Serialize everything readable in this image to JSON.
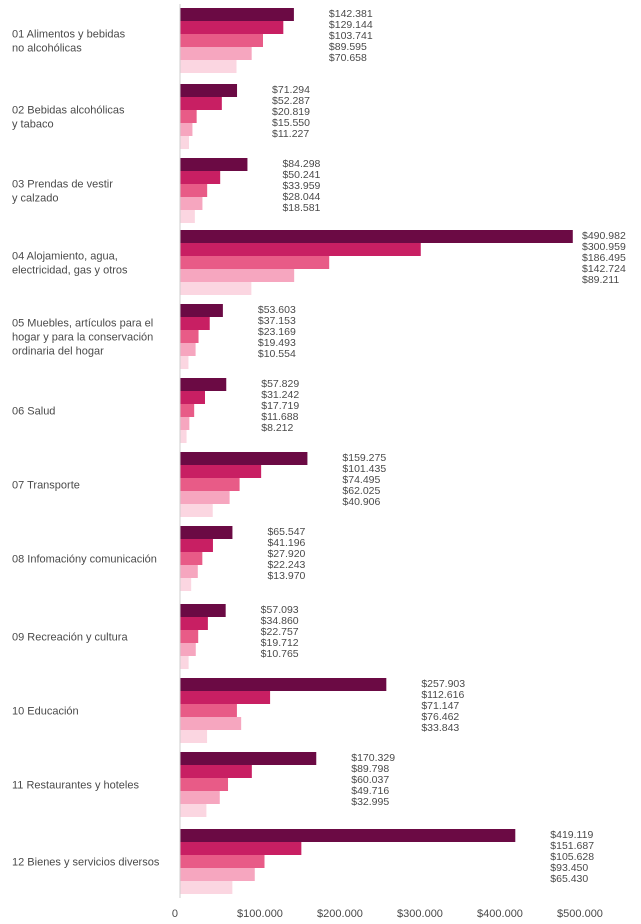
{
  "chart_data": {
    "type": "bar",
    "orientation": "horizontal",
    "title": "",
    "xlabel": "",
    "ylabel": "",
    "xlim": [
      0,
      500000
    ],
    "x_ticks": [
      0,
      100000,
      200000,
      300000,
      400000,
      500000
    ],
    "x_tick_labels": [
      "0",
      "$100.000",
      "$200.000",
      "$300.000",
      "$400.000",
      "$500.000"
    ],
    "grid": false,
    "legend": "none",
    "series_colors": [
      "#6b0a44",
      "#c81f63",
      "#e85b87",
      "#f6a6bf",
      "#fbd6e1"
    ],
    "categories": [
      {
        "lines": [
          "01 Alimentos y bebidas",
          "no alcohólicas"
        ],
        "values": [
          142381,
          129144,
          103741,
          89595,
          70658
        ],
        "labels": [
          "$142.381",
          "$129.144",
          "$103.741",
          "$89.595",
          "$70.658"
        ]
      },
      {
        "lines": [
          "02 Bebidas alcohólicas",
          "y tabaco"
        ],
        "values": [
          71294,
          52287,
          20819,
          15550,
          11227
        ],
        "labels": [
          "$71.294",
          "$52.287",
          "$20.819",
          "$15.550",
          "$11.227"
        ]
      },
      {
        "lines": [
          "03 Prendas de vestir",
          "y calzado"
        ],
        "values": [
          84298,
          50241,
          33959,
          28044,
          18581
        ],
        "labels": [
          "$84.298",
          "$50.241",
          "$33.959",
          "$28.044",
          "$18.581"
        ]
      },
      {
        "lines": [
          "04 Alojamiento, agua,",
          "electricidad, gas y otros"
        ],
        "values": [
          490982,
          300959,
          186495,
          142724,
          89211
        ],
        "labels": [
          "$490.982",
          "$300.959",
          "$186.495",
          "$142.724",
          "$89.211"
        ]
      },
      {
        "lines": [
          "05  Muebles, artículos para el",
          "hogar y para la conservación",
          "ordinaria del hogar"
        ],
        "values": [
          53603,
          37153,
          23169,
          19493,
          10554
        ],
        "labels": [
          "$53.603",
          "$37.153",
          "$23.169",
          "$19.493",
          "$10.554"
        ]
      },
      {
        "lines": [
          "06 Salud"
        ],
        "values": [
          57829,
          31242,
          17719,
          11688,
          8212
        ],
        "labels": [
          "$57.829",
          "$31.242",
          "$17.719",
          "$11.688",
          "$8.212"
        ]
      },
      {
        "lines": [
          "07 Transporte"
        ],
        "values": [
          159275,
          101435,
          74495,
          62025,
          40906
        ],
        "labels": [
          "$159.275",
          "$101.435",
          "$74.495",
          "$62.025",
          "$40.906"
        ]
      },
      {
        "lines": [
          "08 Infomacióny comunicación"
        ],
        "values": [
          65547,
          41196,
          27920,
          22243,
          13970
        ],
        "labels": [
          "$65.547",
          "$41.196",
          "$27.920",
          "$22.243",
          "$13.970"
        ]
      },
      {
        "lines": [
          "09 Recreación y cultura"
        ],
        "values": [
          57093,
          34860,
          22757,
          19712,
          10765
        ],
        "labels": [
          "$57.093",
          "$34.860",
          "$22.757",
          "$19.712",
          "$10.765"
        ]
      },
      {
        "lines": [
          "10 Educación"
        ],
        "values": [
          257903,
          112616,
          71147,
          76462,
          33843
        ],
        "labels": [
          "$257.903",
          "$112.616",
          "$71.147",
          "$76.462",
          "$33.843"
        ]
      },
      {
        "lines": [
          "11 Restaurantes y hoteles"
        ],
        "values": [
          170329,
          89798,
          60037,
          49716,
          32995
        ],
        "labels": [
          "$170.329",
          "$89.798",
          "$60.037",
          "$49.716",
          "$32.995"
        ]
      },
      {
        "lines": [
          "12 Bienes y servicios diversos"
        ],
        "values": [
          419119,
          151687,
          105628,
          93450,
          65430
        ],
        "labels": [
          "$419.119",
          "$151.687",
          "$105.628",
          "$93.450",
          "$65.430"
        ]
      }
    ]
  }
}
